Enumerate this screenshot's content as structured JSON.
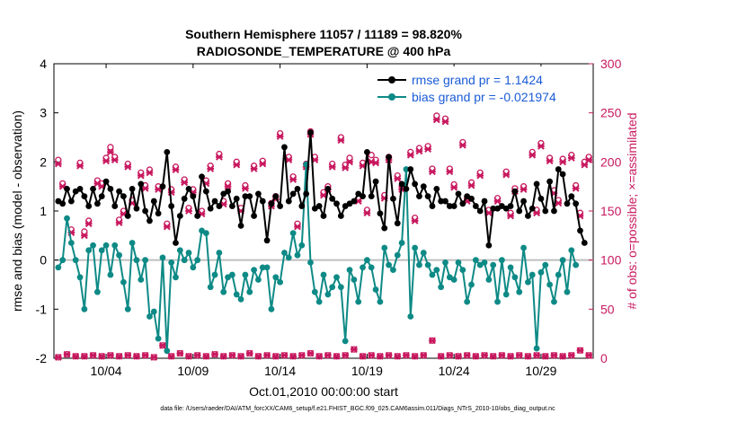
{
  "chart_data": {
    "type": "line",
    "title_line1": "Southern Hemisphere 11057 / 11189 = 98.820%",
    "title_line2": "RADIOSONDE_TEMPERATURE @ 400 hPa",
    "ylabel_left": "rmse and bias (model - observation)",
    "ylabel_right": "# of obs: o=possible; ×=assimilated",
    "xlabel": "Oct.01,2010 00:00:00 start",
    "footnote": "data file: /Users/raeder/DAI/ATM_forcXX/CAM6_setup/f.e21.FHIST_BGC.f09_025.CAM6assim.011/Diags_NTrS_2010-10/obs_diag_output.nc",
    "ylim_left": [
      -2,
      4
    ],
    "ylim_right": [
      0,
      300
    ],
    "xlim_days": [
      1,
      32
    ],
    "yticks_left": [
      "-2",
      "-1",
      "0",
      "1",
      "2",
      "3",
      "4"
    ],
    "yticks_right": [
      "0",
      "50",
      "100",
      "150",
      "200",
      "250",
      "300"
    ],
    "xticks": [
      {
        "day": 4,
        "label": "10/04"
      },
      {
        "day": 9,
        "label": "10/09"
      },
      {
        "day": 14,
        "label": "10/14"
      },
      {
        "day": 19,
        "label": "10/19"
      },
      {
        "day": 24,
        "label": "10/24"
      },
      {
        "day": 29,
        "label": "10/29"
      }
    ],
    "colors": {
      "rmse": "#000000",
      "bias": "#0e8a86",
      "obs": "#c8195f",
      "zero_line": "#bfbfbf",
      "legend_text": "#1a5bd6"
    },
    "series": [
      {
        "name": "rmse grand pr = 1.1424",
        "legend": "rmse grand pr = 1.1424",
        "x_start_day": 1.25,
        "x_step_days": 0.25,
        "values": [
          1.2,
          1.15,
          1.45,
          1.2,
          1.4,
          1.45,
          1.3,
          1.1,
          1.45,
          1.15,
          1.3,
          1.6,
          1.45,
          1.1,
          1.4,
          1.3,
          0.9,
          1.45,
          1.05,
          1.55,
          1.0,
          0.8,
          1.2,
          0.95,
          1.5,
          2.2,
          1.1,
          0.35,
          0.9,
          1.25,
          1.45,
          1.3,
          0.9,
          1.7,
          1.4,
          1.05,
          1.2,
          1.1,
          1.35,
          1.4,
          1.1,
          1.25,
          0.7,
          1.3,
          1.3,
          0.9,
          1.35,
          1.2,
          0.4,
          1.15,
          1.3,
          1.1,
          2.3,
          1.2,
          1.35,
          1.45,
          1.1,
          1.35,
          2.6,
          1.05,
          1.1,
          0.9,
          1.45,
          1.25,
          1.15,
          0.9,
          1.1,
          1.15,
          1.2,
          1.35,
          1.3,
          2.2,
          1.3,
          1.6,
          0.95,
          0.65,
          2.1,
          1.25,
          0.75,
          1.55,
          1.45,
          1.85,
          1.55,
          1.3,
          1.5,
          1.3,
          1.1,
          1.45,
          1.2,
          1.2,
          1.1,
          1.1,
          1.35,
          1.15,
          1.3,
          1.25,
          1.1,
          1.0,
          1.2,
          0.3,
          1.05,
          1.05,
          1.1,
          1.05,
          1.1,
          1.4,
          1.0,
          1.2,
          0.9,
          1.05,
          1.55,
          1.25,
          1.0,
          1.6,
          1.0,
          1.85,
          1.75,
          1.15,
          1.3,
          1.15,
          0.6,
          0.35
        ]
      },
      {
        "name": "bias grand pr = -0.021974",
        "legend": "bias grand pr = -0.021974",
        "x_start_day": 1.25,
        "x_step_days": 0.25,
        "values": [
          -0.15,
          0.0,
          0.85,
          0.35,
          0.0,
          -0.35,
          -1.0,
          0.2,
          0.3,
          -0.65,
          0.2,
          0.3,
          -0.3,
          0.3,
          0.1,
          -0.45,
          -1.0,
          0.35,
          0.0,
          -0.4,
          0.0,
          -1.15,
          -1.05,
          -1.6,
          0.05,
          -1.85,
          -0.05,
          -0.35,
          0.2,
          0.0,
          0.15,
          -0.15,
          0.0,
          0.6,
          0.55,
          -0.55,
          -0.3,
          0.15,
          -0.65,
          -0.35,
          -0.3,
          -0.7,
          -0.8,
          -0.3,
          -0.65,
          -0.2,
          -0.4,
          -0.15,
          -0.15,
          -1.0,
          -0.35,
          -0.45,
          0.15,
          0.05,
          0.55,
          0.1,
          0.3,
          1.95,
          -0.05,
          -0.65,
          -0.85,
          -0.3,
          -0.7,
          -0.55,
          -0.35,
          -0.55,
          -1.65,
          -0.2,
          -0.4,
          -0.85,
          -0.15,
          0.0,
          -0.15,
          -0.6,
          -0.85,
          0.25,
          -0.1,
          -0.2,
          0.1,
          0.35,
          1.85,
          -1.15,
          0.25,
          -0.1,
          0.15,
          -0.1,
          -0.3,
          -0.2,
          -0.55,
          -0.05,
          -0.35,
          -0.4,
          -0.05,
          -0.2,
          -0.85,
          -0.5,
          0.0,
          -0.1,
          -0.05,
          -0.4,
          -0.1,
          -0.85,
          0.0,
          -0.7,
          -0.15,
          -0.35,
          -0.65,
          0.25,
          -0.45,
          -0.3,
          -1.8,
          -0.25,
          -0.1,
          -0.5,
          -0.85,
          -0.3,
          0.0,
          -0.65,
          0.2,
          -0.1
        ]
      }
    ],
    "obs_possible": [
      {
        "x": 1.25,
        "y": 202
      },
      {
        "x": 1.5,
        "y": 178
      },
      {
        "x": 2.0,
        "y": 131
      },
      {
        "x": 2.5,
        "y": 199
      },
      {
        "x": 2.75,
        "y": 129
      },
      {
        "x": 3.0,
        "y": 140
      },
      {
        "x": 3.5,
        "y": 181
      },
      {
        "x": 3.75,
        "y": 178
      },
      {
        "x": 4.0,
        "y": 204
      },
      {
        "x": 4.25,
        "y": 215
      },
      {
        "x": 4.5,
        "y": 205
      },
      {
        "x": 4.75,
        "y": 141
      },
      {
        "x": 5.0,
        "y": 150
      },
      {
        "x": 5.25,
        "y": 198
      },
      {
        "x": 5.5,
        "y": 161
      },
      {
        "x": 6.0,
        "y": 189
      },
      {
        "x": 6.25,
        "y": 176
      },
      {
        "x": 6.5,
        "y": 192
      },
      {
        "x": 7.0,
        "y": 175
      },
      {
        "x": 7.5,
        "y": 137
      },
      {
        "x": 7.75,
        "y": 172
      },
      {
        "x": 8.0,
        "y": 195
      },
      {
        "x": 8.5,
        "y": 182
      },
      {
        "x": 8.75,
        "y": 153
      },
      {
        "x": 9.0,
        "y": 172
      },
      {
        "x": 9.5,
        "y": 150
      },
      {
        "x": 9.75,
        "y": 181
      },
      {
        "x": 10.0,
        "y": 196
      },
      {
        "x": 10.5,
        "y": 208
      },
      {
        "x": 10.75,
        "y": 160
      },
      {
        "x": 11.0,
        "y": 178
      },
      {
        "x": 11.5,
        "y": 200
      },
      {
        "x": 11.75,
        "y": 153
      },
      {
        "x": 12.0,
        "y": 176
      },
      {
        "x": 12.5,
        "y": 196
      },
      {
        "x": 13.0,
        "y": 201
      },
      {
        "x": 13.5,
        "y": 158
      },
      {
        "x": 13.75,
        "y": 165
      },
      {
        "x": 14.0,
        "y": 229
      },
      {
        "x": 14.5,
        "y": 205
      },
      {
        "x": 14.75,
        "y": 185
      },
      {
        "x": 15.0,
        "y": 137
      },
      {
        "x": 15.5,
        "y": 198
      },
      {
        "x": 15.75,
        "y": 231
      },
      {
        "x": 16.0,
        "y": 205
      },
      {
        "x": 16.5,
        "y": 169
      },
      {
        "x": 16.75,
        "y": 175
      },
      {
        "x": 17.0,
        "y": 198
      },
      {
        "x": 17.5,
        "y": 225
      },
      {
        "x": 17.75,
        "y": 197
      },
      {
        "x": 18.0,
        "y": 204
      },
      {
        "x": 18.5,
        "y": 163
      },
      {
        "x": 18.75,
        "y": 199
      },
      {
        "x": 19.0,
        "y": 151
      },
      {
        "x": 19.25,
        "y": 207
      },
      {
        "x": 19.5,
        "y": 202
      },
      {
        "x": 20.0,
        "y": 166
      },
      {
        "x": 20.25,
        "y": 205
      },
      {
        "x": 20.75,
        "y": 186
      },
      {
        "x": 21.0,
        "y": 175
      },
      {
        "x": 21.5,
        "y": 210
      },
      {
        "x": 21.75,
        "y": 143
      },
      {
        "x": 22.0,
        "y": 214
      },
      {
        "x": 22.5,
        "y": 216
      },
      {
        "x": 22.75,
        "y": 193
      },
      {
        "x": 23.0,
        "y": 247
      },
      {
        "x": 23.5,
        "y": 244
      },
      {
        "x": 23.75,
        "y": 193
      },
      {
        "x": 24.0,
        "y": 177
      },
      {
        "x": 24.5,
        "y": 220
      },
      {
        "x": 24.75,
        "y": 163
      },
      {
        "x": 25.0,
        "y": 179
      },
      {
        "x": 25.5,
        "y": 189
      },
      {
        "x": 26.0,
        "y": 151
      },
      {
        "x": 26.5,
        "y": 163
      },
      {
        "x": 27.0,
        "y": 190
      },
      {
        "x": 27.25,
        "y": 148
      },
      {
        "x": 27.5,
        "y": 173
      },
      {
        "x": 28.0,
        "y": 175
      },
      {
        "x": 28.5,
        "y": 210
      },
      {
        "x": 28.75,
        "y": 151
      },
      {
        "x": 29.0,
        "y": 219
      },
      {
        "x": 29.5,
        "y": 204
      },
      {
        "x": 29.75,
        "y": 171
      },
      {
        "x": 30.0,
        "y": 161
      },
      {
        "x": 30.25,
        "y": 203
      },
      {
        "x": 30.75,
        "y": 207
      },
      {
        "x": 31.0,
        "y": 176
      },
      {
        "x": 31.25,
        "y": 148
      },
      {
        "x": 31.5,
        "y": 200
      },
      {
        "x": 31.75,
        "y": 205
      }
    ],
    "obs_assimilated": [
      {
        "x": 1.25,
        "y": 198
      },
      {
        "x": 1.5,
        "y": 175
      },
      {
        "x": 2.0,
        "y": 128
      },
      {
        "x": 2.5,
        "y": 196
      },
      {
        "x": 2.75,
        "y": 125
      },
      {
        "x": 3.0,
        "y": 137
      },
      {
        "x": 3.5,
        "y": 178
      },
      {
        "x": 3.75,
        "y": 175
      },
      {
        "x": 4.0,
        "y": 201
      },
      {
        "x": 4.25,
        "y": 210
      },
      {
        "x": 4.5,
        "y": 202
      },
      {
        "x": 4.75,
        "y": 138
      },
      {
        "x": 5.0,
        "y": 147
      },
      {
        "x": 5.25,
        "y": 195
      },
      {
        "x": 5.5,
        "y": 158
      },
      {
        "x": 6.0,
        "y": 186
      },
      {
        "x": 6.25,
        "y": 173
      },
      {
        "x": 6.5,
        "y": 189
      },
      {
        "x": 7.0,
        "y": 172
      },
      {
        "x": 7.5,
        "y": 134
      },
      {
        "x": 7.75,
        "y": 169
      },
      {
        "x": 8.0,
        "y": 192
      },
      {
        "x": 8.5,
        "y": 179
      },
      {
        "x": 8.75,
        "y": 150
      },
      {
        "x": 9.0,
        "y": 169
      },
      {
        "x": 9.5,
        "y": 147
      },
      {
        "x": 9.75,
        "y": 178
      },
      {
        "x": 10.0,
        "y": 193
      },
      {
        "x": 10.5,
        "y": 205
      },
      {
        "x": 10.75,
        "y": 157
      },
      {
        "x": 11.0,
        "y": 175
      },
      {
        "x": 11.5,
        "y": 197
      },
      {
        "x": 11.75,
        "y": 150
      },
      {
        "x": 12.0,
        "y": 173
      },
      {
        "x": 12.5,
        "y": 193
      },
      {
        "x": 13.0,
        "y": 198
      },
      {
        "x": 13.5,
        "y": 155
      },
      {
        "x": 13.75,
        "y": 162
      },
      {
        "x": 14.0,
        "y": 226
      },
      {
        "x": 14.5,
        "y": 202
      },
      {
        "x": 14.75,
        "y": 182
      },
      {
        "x": 15.0,
        "y": 134
      },
      {
        "x": 15.5,
        "y": 195
      },
      {
        "x": 15.75,
        "y": 228
      },
      {
        "x": 16.0,
        "y": 202
      },
      {
        "x": 16.5,
        "y": 166
      },
      {
        "x": 16.75,
        "y": 172
      },
      {
        "x": 17.0,
        "y": 195
      },
      {
        "x": 17.5,
        "y": 222
      },
      {
        "x": 17.75,
        "y": 194
      },
      {
        "x": 18.0,
        "y": 200
      },
      {
        "x": 18.5,
        "y": 160
      },
      {
        "x": 18.75,
        "y": 196
      },
      {
        "x": 19.0,
        "y": 148
      },
      {
        "x": 19.25,
        "y": 200
      },
      {
        "x": 19.5,
        "y": 199
      },
      {
        "x": 20.0,
        "y": 163
      },
      {
        "x": 20.25,
        "y": 202
      },
      {
        "x": 20.75,
        "y": 183
      },
      {
        "x": 21.0,
        "y": 172
      },
      {
        "x": 21.5,
        "y": 207
      },
      {
        "x": 21.75,
        "y": 140
      },
      {
        "x": 22.0,
        "y": 211
      },
      {
        "x": 22.5,
        "y": 213
      },
      {
        "x": 22.75,
        "y": 190
      },
      {
        "x": 23.0,
        "y": 243
      },
      {
        "x": 23.5,
        "y": 241
      },
      {
        "x": 23.75,
        "y": 190
      },
      {
        "x": 24.0,
        "y": 174
      },
      {
        "x": 24.5,
        "y": 217
      },
      {
        "x": 24.75,
        "y": 160
      },
      {
        "x": 25.0,
        "y": 176
      },
      {
        "x": 25.5,
        "y": 186
      },
      {
        "x": 26.0,
        "y": 148
      },
      {
        "x": 26.5,
        "y": 160
      },
      {
        "x": 27.0,
        "y": 187
      },
      {
        "x": 27.25,
        "y": 145
      },
      {
        "x": 27.5,
        "y": 170
      },
      {
        "x": 28.0,
        "y": 172
      },
      {
        "x": 28.5,
        "y": 207
      },
      {
        "x": 28.75,
        "y": 148
      },
      {
        "x": 29.0,
        "y": 216
      },
      {
        "x": 29.5,
        "y": 201
      },
      {
        "x": 29.75,
        "y": 168
      },
      {
        "x": 30.0,
        "y": 158
      },
      {
        "x": 30.25,
        "y": 200
      },
      {
        "x": 30.75,
        "y": 204
      },
      {
        "x": 31.0,
        "y": 173
      },
      {
        "x": 31.25,
        "y": 145
      },
      {
        "x": 31.5,
        "y": 197
      },
      {
        "x": 31.75,
        "y": 202
      }
    ],
    "obs_low_possible": [
      {
        "x": 1.25,
        "y": 1
      },
      {
        "x": 1.75,
        "y": 4
      },
      {
        "x": 2.25,
        "y": 2
      },
      {
        "x": 2.75,
        "y": 2
      },
      {
        "x": 3.25,
        "y": 3
      },
      {
        "x": 3.75,
        "y": 2
      },
      {
        "x": 4.25,
        "y": 3
      },
      {
        "x": 4.75,
        "y": 2
      },
      {
        "x": 5.25,
        "y": 3
      },
      {
        "x": 5.75,
        "y": 2
      },
      {
        "x": 6.25,
        "y": 3
      },
      {
        "x": 6.75,
        "y": 1
      },
      {
        "x": 7.25,
        "y": 13
      },
      {
        "x": 7.75,
        "y": 2
      },
      {
        "x": 8.25,
        "y": 5
      },
      {
        "x": 8.75,
        "y": 2
      },
      {
        "x": 9.25,
        "y": 3
      },
      {
        "x": 9.75,
        "y": 2
      },
      {
        "x": 10.25,
        "y": 4
      },
      {
        "x": 10.75,
        "y": 2
      },
      {
        "x": 11.25,
        "y": 3
      },
      {
        "x": 11.75,
        "y": 2
      },
      {
        "x": 12.25,
        "y": 5
      },
      {
        "x": 12.75,
        "y": 2
      },
      {
        "x": 13.25,
        "y": 3
      },
      {
        "x": 13.75,
        "y": 2
      },
      {
        "x": 14.25,
        "y": 3
      },
      {
        "x": 14.75,
        "y": 2
      },
      {
        "x": 15.25,
        "y": 3
      },
      {
        "x": 15.75,
        "y": 5
      },
      {
        "x": 16.25,
        "y": 2
      },
      {
        "x": 16.75,
        "y": 3
      },
      {
        "x": 17.25,
        "y": 2
      },
      {
        "x": 17.75,
        "y": 3
      },
      {
        "x": 18.25,
        "y": 9
      },
      {
        "x": 18.75,
        "y": 2
      },
      {
        "x": 19.25,
        "y": 3
      },
      {
        "x": 19.75,
        "y": 2
      },
      {
        "x": 20.25,
        "y": 3
      },
      {
        "x": 20.75,
        "y": 2
      },
      {
        "x": 21.25,
        "y": 3
      },
      {
        "x": 21.75,
        "y": 2
      },
      {
        "x": 22.25,
        "y": 3
      },
      {
        "x": 22.75,
        "y": 18
      },
      {
        "x": 23.25,
        "y": 2
      },
      {
        "x": 23.75,
        "y": 3
      },
      {
        "x": 24.25,
        "y": 2
      },
      {
        "x": 24.75,
        "y": 3
      },
      {
        "x": 25.25,
        "y": 2
      },
      {
        "x": 25.75,
        "y": 3
      },
      {
        "x": 26.25,
        "y": 2
      },
      {
        "x": 26.75,
        "y": 3
      },
      {
        "x": 27.25,
        "y": 2
      },
      {
        "x": 27.75,
        "y": 3
      },
      {
        "x": 28.25,
        "y": 2
      },
      {
        "x": 28.75,
        "y": 3
      },
      {
        "x": 29.25,
        "y": 2
      },
      {
        "x": 29.75,
        "y": 3
      },
      {
        "x": 30.25,
        "y": 2
      },
      {
        "x": 30.75,
        "y": 3
      },
      {
        "x": 31.25,
        "y": 8
      },
      {
        "x": 31.75,
        "y": 3
      }
    ]
  }
}
